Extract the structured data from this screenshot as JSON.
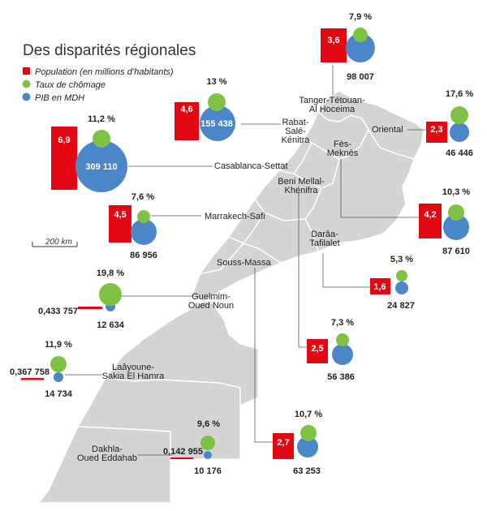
{
  "title": "Des disparités régionales",
  "legend": [
    {
      "label": "Population (en millions d’habitants)",
      "color": "#e30613",
      "shape": "square"
    },
    {
      "label": "Taux de chômage",
      "color": "#7dc242",
      "shape": "circle"
    },
    {
      "label": "PIB en MDH",
      "color": "#4a86c8",
      "shape": "circle"
    }
  ],
  "scale_label": "200 km",
  "colors": {
    "population": "#e30613",
    "chomage": "#7dc242",
    "pib": "#4a86c8",
    "land": "#d4d4d4",
    "border": "#ffffff"
  },
  "regions": [
    {
      "key": "tanger",
      "name_lines": [
        "Tanger-Tétouan-",
        "Al Hoceima"
      ],
      "population": "3,6",
      "chomage": "7,9 %",
      "pib": "98 007"
    },
    {
      "key": "oriental",
      "name_lines": [
        "Oriental"
      ],
      "population": "2,3",
      "chomage": "17,6 %",
      "pib": "46 446"
    },
    {
      "key": "fes",
      "name_lines": [
        "Fès-",
        "Meknès"
      ],
      "population": "4,2",
      "chomage": "10,3 %",
      "pib": "87 610"
    },
    {
      "key": "rabat",
      "name_lines": [
        "Rabat-",
        "Salé-",
        "Kénitra"
      ],
      "population": "4,6",
      "chomage": "13 %",
      "pib": "155 438"
    },
    {
      "key": "casa",
      "name_lines": [
        "Casablanca-Settat"
      ],
      "population": "6,9",
      "chomage": "11,2 %",
      "pib": "309 110"
    },
    {
      "key": "beni",
      "name_lines": [
        "Beni Mellal-",
        "Khénifra"
      ],
      "population": "2,5",
      "chomage": "7,3 %",
      "pib": "56 386"
    },
    {
      "key": "marrakech",
      "name_lines": [
        "Marrakech-Safi"
      ],
      "population": "4,5",
      "chomage": "7,6 %",
      "pib": "86 956"
    },
    {
      "key": "draa",
      "name_lines": [
        "Darâa-",
        "Tafilalet"
      ],
      "population": "1,6",
      "chomage": "5,3 %",
      "pib": "24 827"
    },
    {
      "key": "souss",
      "name_lines": [
        "Souss-Massa"
      ],
      "population": "2,7",
      "chomage": "10,7 %",
      "pib": "63 253"
    },
    {
      "key": "guelmim",
      "name_lines": [
        "Guelmim-",
        "Oued Noun"
      ],
      "population": "0,433 757",
      "chomage": "19,8 %",
      "pib": "12 634"
    },
    {
      "key": "laayoune",
      "name_lines": [
        "Laâyoune-",
        "Sakia El Hamra"
      ],
      "population": "0,367 758",
      "chomage": "11,9 %",
      "pib": "14 734"
    },
    {
      "key": "dakhla",
      "name_lines": [
        "Dakhla-",
        "Oued Eddahab"
      ],
      "population": "0,142 955",
      "chomage": "9,6 %",
      "pib": "10 176"
    }
  ]
}
